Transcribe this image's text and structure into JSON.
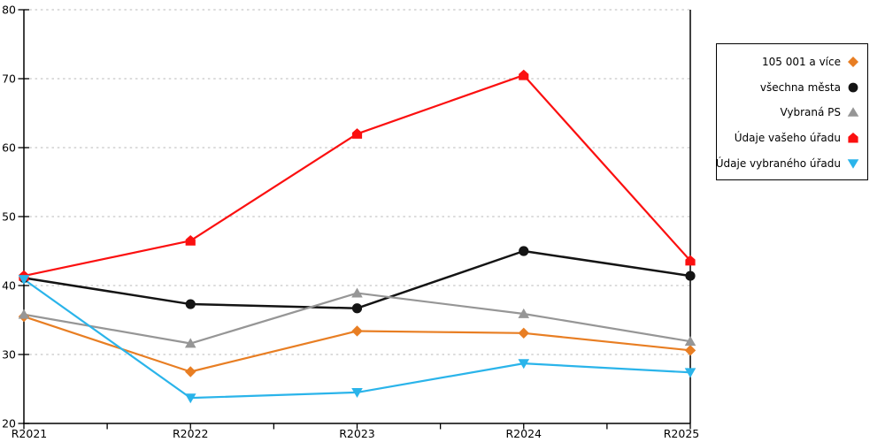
{
  "chart_data": {
    "type": "line",
    "title": "",
    "xlabel": "",
    "ylabel": "",
    "categories": [
      "R2021",
      "R2022",
      "R2023",
      "R2024",
      "R2025"
    ],
    "series": [
      {
        "name": "105 001 a více",
        "color": "#E87E23",
        "marker": "diamond",
        "values": [
          35.5,
          27.5,
          33.4,
          33.1,
          30.6
        ]
      },
      {
        "name": "všechna města",
        "color": "#141414",
        "marker": "circle",
        "values": [
          41.1,
          37.3,
          36.7,
          45.0,
          41.4
        ]
      },
      {
        "name": "Vybraná PS",
        "color": "#969696",
        "marker": "triangle-up",
        "values": [
          35.8,
          31.6,
          38.9,
          35.9,
          31.9
        ]
      },
      {
        "name": "Údaje vašeho úřadu",
        "color": "#FB1010",
        "marker": "pentagon",
        "values": [
          41.4,
          46.5,
          62.0,
          70.5,
          43.6
        ]
      },
      {
        "name": "Údaje vybraného úřadu",
        "color": "#2AB4EA",
        "marker": "triangle-down",
        "values": [
          40.9,
          23.7,
          24.5,
          28.7,
          27.4
        ]
      }
    ],
    "ylim": [
      20,
      80
    ],
    "ytick_step": 10,
    "ytick_labels": [
      "20",
      "30",
      "40",
      "50",
      "60",
      "70",
      "80"
    ],
    "grid": "horizontal-dotted",
    "gridline_color": "#C6C6C6",
    "axis_color": "#000000",
    "legend_position": "right-outside",
    "plot_border": "left-bottom-right"
  }
}
